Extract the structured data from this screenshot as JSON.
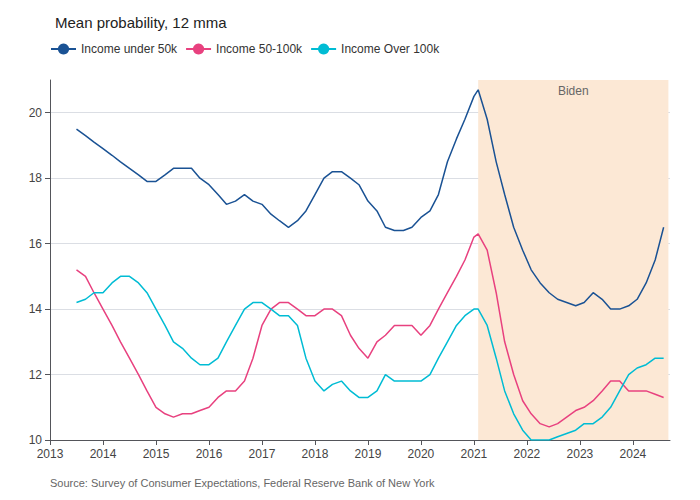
{
  "chart_data": {
    "type": "line",
    "title": "Mean probability, 12 mma",
    "source": "Source: Survey of Consumer Expectations, Federal Reserve Bank of New York",
    "x": [
      2013.5,
      2013.67,
      2013.83,
      2014.0,
      2014.17,
      2014.33,
      2014.5,
      2014.67,
      2014.83,
      2015.0,
      2015.17,
      2015.33,
      2015.5,
      2015.67,
      2015.83,
      2016.0,
      2016.17,
      2016.33,
      2016.5,
      2016.67,
      2016.83,
      2017.0,
      2017.17,
      2017.33,
      2017.5,
      2017.67,
      2017.83,
      2018.0,
      2018.17,
      2018.33,
      2018.5,
      2018.67,
      2018.83,
      2019.0,
      2019.17,
      2019.33,
      2019.5,
      2019.67,
      2019.83,
      2020.0,
      2020.17,
      2020.33,
      2020.5,
      2020.67,
      2020.83,
      2021.0,
      2021.08,
      2021.25,
      2021.42,
      2021.58,
      2021.75,
      2021.92,
      2022.08,
      2022.25,
      2022.42,
      2022.58,
      2022.75,
      2022.92,
      2023.08,
      2023.25,
      2023.42,
      2023.58,
      2023.75,
      2023.92,
      2024.08,
      2024.25,
      2024.42,
      2024.58
    ],
    "series": [
      {
        "name": "Income under 50k",
        "color": "#1a5294",
        "values": [
          19.5,
          19.3,
          19.1,
          18.9,
          18.7,
          18.5,
          18.3,
          18.1,
          17.9,
          17.9,
          18.1,
          18.3,
          18.3,
          18.3,
          18.0,
          17.8,
          17.5,
          17.2,
          17.3,
          17.5,
          17.3,
          17.2,
          16.9,
          16.7,
          16.5,
          16.7,
          17.0,
          17.5,
          18.0,
          18.2,
          18.2,
          18.0,
          17.8,
          17.3,
          17.0,
          16.5,
          16.4,
          16.4,
          16.5,
          16.8,
          17.0,
          17.5,
          18.5,
          19.2,
          19.8,
          20.5,
          20.7,
          19.8,
          18.5,
          17.5,
          16.5,
          15.8,
          15.2,
          14.8,
          14.5,
          14.3,
          14.2,
          14.1,
          14.2,
          14.5,
          14.3,
          14.0,
          14.0,
          14.1,
          14.3,
          14.8,
          15.5,
          16.5
        ]
      },
      {
        "name": "Income 50-100k",
        "color": "#e8417f",
        "values": [
          15.2,
          15.0,
          14.5,
          14.0,
          13.5,
          13.0,
          12.5,
          12.0,
          11.5,
          11.0,
          10.8,
          10.7,
          10.8,
          10.8,
          10.9,
          11.0,
          11.3,
          11.5,
          11.5,
          11.8,
          12.5,
          13.5,
          14.0,
          14.2,
          14.2,
          14.0,
          13.8,
          13.8,
          14.0,
          14.0,
          13.8,
          13.2,
          12.8,
          12.5,
          13.0,
          13.2,
          13.5,
          13.5,
          13.5,
          13.2,
          13.5,
          14.0,
          14.5,
          15.0,
          15.5,
          16.2,
          16.3,
          15.8,
          14.5,
          13.0,
          12.0,
          11.2,
          10.8,
          10.5,
          10.4,
          10.5,
          10.7,
          10.9,
          11.0,
          11.2,
          11.5,
          11.8,
          11.8,
          11.5,
          11.5,
          11.5,
          11.4,
          11.3
        ]
      },
      {
        "name": "Income Over 100k",
        "color": "#00bcd4",
        "values": [
          14.2,
          14.3,
          14.5,
          14.5,
          14.8,
          15.0,
          15.0,
          14.8,
          14.5,
          14.0,
          13.5,
          13.0,
          12.8,
          12.5,
          12.3,
          12.3,
          12.5,
          13.0,
          13.5,
          14.0,
          14.2,
          14.2,
          14.0,
          13.8,
          13.8,
          13.5,
          12.5,
          11.8,
          11.5,
          11.7,
          11.8,
          11.5,
          11.3,
          11.3,
          11.5,
          12.0,
          11.8,
          11.8,
          11.8,
          11.8,
          12.0,
          12.5,
          13.0,
          13.5,
          13.8,
          14.0,
          14.0,
          13.5,
          12.5,
          11.5,
          10.8,
          10.3,
          10.0,
          10.0,
          10.0,
          10.1,
          10.2,
          10.3,
          10.5,
          10.5,
          10.7,
          11.0,
          11.5,
          12.0,
          12.2,
          12.3,
          12.5,
          12.5
        ]
      }
    ],
    "spans": [
      {
        "label": "Biden",
        "start": 2021.08,
        "end": 2024.67,
        "color": "#fce8d5"
      }
    ],
    "xlim": [
      2013.0,
      2024.7
    ],
    "xticks": [
      2013,
      2014,
      2015,
      2016,
      2017,
      2018,
      2019,
      2020,
      2021,
      2022,
      2023,
      2024
    ],
    "ylim": [
      10,
      21
    ],
    "yticks": [
      10,
      12,
      14,
      16,
      18,
      20
    ],
    "grid": true
  }
}
